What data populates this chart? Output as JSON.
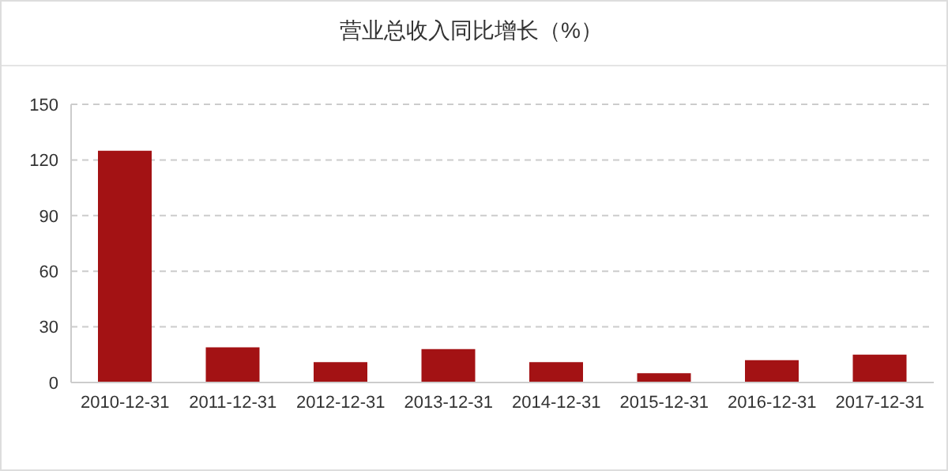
{
  "chart_data": {
    "type": "bar",
    "title": "营业总收入同比增长（%）",
    "categories": [
      "2010-12-31",
      "2011-12-31",
      "2012-12-31",
      "2013-12-31",
      "2014-12-31",
      "2015-12-31",
      "2016-12-31",
      "2017-12-31"
    ],
    "values": [
      125,
      19,
      11,
      18,
      11,
      5,
      12,
      15
    ],
    "color": "#a31214",
    "ylim": [
      0,
      150
    ],
    "yticks": [
      0,
      30,
      60,
      90,
      120,
      150
    ],
    "grid": "y"
  }
}
